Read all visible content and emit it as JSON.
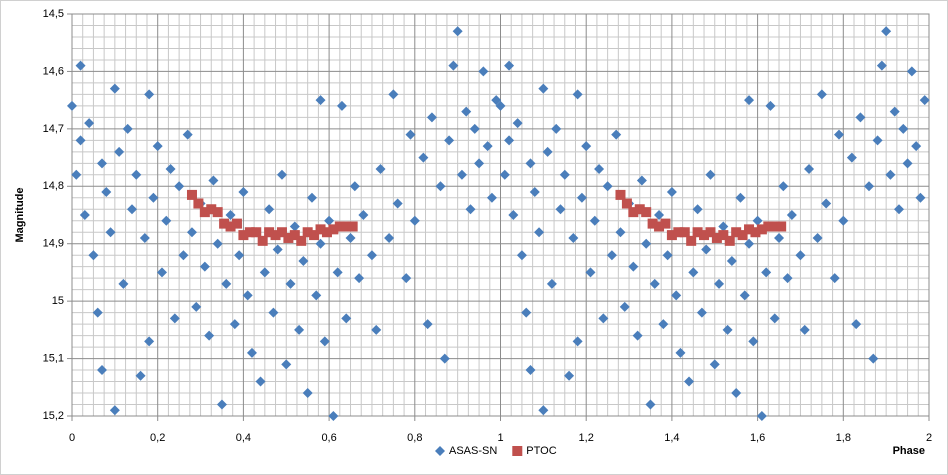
{
  "chart_data": {
    "type": "scatter",
    "xlabel": "Phase",
    "ylabel": "Magnitude",
    "xlim": [
      0,
      2
    ],
    "xticks": [
      0,
      {
        "value": 0.2,
        "label": "0,2"
      },
      {
        "value": 0.4,
        "label": "0,4"
      },
      {
        "value": 0.6,
        "label": "0,6"
      },
      {
        "value": 0.8,
        "label": "0,8"
      },
      1,
      {
        "value": 1.2,
        "label": "1,2"
      },
      {
        "value": 1.4,
        "label": "1,4"
      },
      {
        "value": 1.6,
        "label": "1,6"
      },
      {
        "value": 1.8,
        "label": "1,8"
      },
      2
    ],
    "ylim": [
      14.5,
      15.2
    ],
    "y_reversed": true,
    "yticks": [
      {
        "value": 14.5,
        "label": "14,5"
      },
      {
        "value": 14.6,
        "label": "14,6"
      },
      {
        "value": 14.7,
        "label": "14,7"
      },
      {
        "value": 14.8,
        "label": "14,8"
      },
      {
        "value": 14.9,
        "label": "14,9"
      },
      15,
      {
        "value": 15.1,
        "label": "15,1"
      },
      {
        "value": 15.2,
        "label": "15,2"
      }
    ],
    "grid": true,
    "legend": "bottom",
    "series": [
      {
        "name": "ASAS-SN",
        "color": "#4a7ebb",
        "marker": "diamond",
        "x": [
          0.0,
          0.01,
          0.02,
          0.02,
          0.03,
          0.04,
          0.05,
          0.06,
          0.07,
          0.07,
          0.08,
          0.09,
          0.1,
          0.1,
          0.11,
          0.12,
          0.13,
          0.14,
          0.15,
          0.16,
          0.17,
          0.18,
          0.18,
          0.19,
          0.2,
          0.21,
          0.22,
          0.23,
          0.24,
          0.25,
          0.26,
          0.27,
          0.28,
          0.29,
          0.3,
          0.31,
          0.32,
          0.33,
          0.34,
          0.35,
          0.36,
          0.37,
          0.38,
          0.39,
          0.4,
          0.41,
          0.42,
          0.43,
          0.44,
          0.45,
          0.46,
          0.47,
          0.48,
          0.49,
          0.5,
          0.51,
          0.52,
          0.53,
          0.54,
          0.55,
          0.56,
          0.57,
          0.58,
          0.58,
          0.59,
          0.6,
          0.61,
          0.62,
          0.63,
          0.64,
          0.65,
          0.66,
          0.67,
          0.68,
          0.7,
          0.71,
          0.72,
          0.74,
          0.75,
          0.76,
          0.78,
          0.79,
          0.8,
          0.82,
          0.83,
          0.84,
          0.86,
          0.87,
          0.88,
          0.89,
          0.9,
          0.91,
          0.92,
          0.93,
          0.94,
          0.95,
          0.96,
          0.97,
          0.98,
          0.99,
          1.0,
          1.01,
          1.02,
          1.02,
          1.03,
          1.04,
          1.05,
          1.06,
          1.07,
          1.07,
          1.08,
          1.09,
          1.1,
          1.1,
          1.11,
          1.12,
          1.13,
          1.14,
          1.15,
          1.16,
          1.17,
          1.18,
          1.18,
          1.19,
          1.2,
          1.21,
          1.22,
          1.23,
          1.24,
          1.25,
          1.26,
          1.27,
          1.28,
          1.29,
          1.3,
          1.31,
          1.32,
          1.33,
          1.34,
          1.35,
          1.36,
          1.37,
          1.38,
          1.39,
          1.4,
          1.41,
          1.42,
          1.43,
          1.44,
          1.45,
          1.46,
          1.47,
          1.48,
          1.49,
          1.5,
          1.51,
          1.52,
          1.53,
          1.54,
          1.55,
          1.56,
          1.57,
          1.58,
          1.58,
          1.59,
          1.6,
          1.61,
          1.62,
          1.63,
          1.64,
          1.65,
          1.66,
          1.67,
          1.68,
          1.7,
          1.71,
          1.72,
          1.74,
          1.75,
          1.76,
          1.78,
          1.79,
          1.8,
          1.82,
          1.83,
          1.84,
          1.86,
          1.87,
          1.88,
          1.89,
          1.9,
          1.91,
          1.92,
          1.93,
          1.94,
          1.95,
          1.96,
          1.97,
          1.98,
          1.99
        ],
        "values": [
          14.66,
          14.78,
          14.59,
          14.72,
          14.85,
          14.69,
          14.92,
          15.02,
          15.12,
          14.76,
          14.81,
          14.88,
          14.63,
          15.19,
          14.74,
          14.97,
          14.7,
          14.84,
          14.78,
          15.13,
          14.89,
          14.64,
          15.07,
          14.82,
          14.73,
          14.95,
          14.86,
          14.77,
          15.03,
          14.8,
          14.92,
          14.71,
          14.88,
          15.01,
          14.83,
          14.94,
          15.06,
          14.79,
          14.9,
          15.18,
          14.97,
          14.85,
          15.04,
          14.92,
          14.81,
          14.99,
          15.09,
          14.88,
          15.14,
          14.95,
          14.84,
          15.02,
          14.91,
          14.78,
          15.11,
          14.97,
          14.87,
          15.05,
          14.93,
          15.16,
          14.82,
          14.99,
          14.65,
          14.9,
          15.07,
          14.86,
          15.2,
          14.95,
          14.66,
          15.03,
          14.89,
          14.8,
          14.96,
          14.85,
          14.92,
          15.05,
          14.77,
          14.89,
          14.64,
          14.83,
          14.96,
          14.71,
          14.86,
          14.75,
          15.04,
          14.68,
          14.8,
          15.1,
          14.72,
          14.59,
          14.53,
          14.78,
          14.67,
          14.84,
          14.7,
          14.76,
          14.6,
          14.73,
          14.82,
          14.65,
          14.66,
          14.78,
          14.59,
          14.72,
          14.85,
          14.69,
          14.92,
          15.02,
          15.12,
          14.76,
          14.81,
          14.88,
          14.63,
          15.19,
          14.74,
          14.97,
          14.7,
          14.84,
          14.78,
          15.13,
          14.89,
          14.64,
          15.07,
          14.82,
          14.73,
          14.95,
          14.86,
          14.77,
          15.03,
          14.8,
          14.92,
          14.71,
          14.88,
          15.01,
          14.83,
          14.94,
          15.06,
          14.79,
          14.9,
          15.18,
          14.97,
          14.85,
          15.04,
          14.92,
          14.81,
          14.99,
          15.09,
          14.88,
          15.14,
          14.95,
          14.84,
          15.02,
          14.91,
          14.78,
          15.11,
          14.97,
          14.87,
          15.05,
          14.93,
          15.16,
          14.82,
          14.99,
          14.65,
          14.9,
          15.07,
          14.86,
          15.2,
          14.95,
          14.66,
          15.03,
          14.89,
          14.8,
          14.96,
          14.85,
          14.92,
          15.05,
          14.77,
          14.89,
          14.64,
          14.83,
          14.96,
          14.71,
          14.86,
          14.75,
          15.04,
          14.68,
          14.8,
          15.1,
          14.72,
          14.59,
          14.53,
          14.78,
          14.67,
          14.84,
          14.7,
          14.76,
          14.6,
          14.73,
          14.82,
          14.65
        ]
      },
      {
        "name": "PTOC",
        "color": "#c0504d",
        "marker": "square",
        "x": [
          0.28,
          0.295,
          0.31,
          0.325,
          0.34,
          0.355,
          0.37,
          0.385,
          0.4,
          0.415,
          0.43,
          0.445,
          0.46,
          0.475,
          0.49,
          0.505,
          0.52,
          0.535,
          0.55,
          0.565,
          0.58,
          0.595,
          0.61,
          0.625,
          0.64,
          0.655,
          1.28,
          1.295,
          1.31,
          1.325,
          1.34,
          1.355,
          1.37,
          1.385,
          1.4,
          1.415,
          1.43,
          1.445,
          1.46,
          1.475,
          1.49,
          1.505,
          1.52,
          1.535,
          1.55,
          1.565,
          1.58,
          1.595,
          1.61,
          1.625,
          1.64,
          1.655
        ],
        "values": [
          14.815,
          14.83,
          14.845,
          14.84,
          14.845,
          14.865,
          14.87,
          14.865,
          14.885,
          14.88,
          14.88,
          14.895,
          14.88,
          14.885,
          14.88,
          14.89,
          14.885,
          14.895,
          14.88,
          14.885,
          14.875,
          14.88,
          14.875,
          14.87,
          14.87,
          14.87,
          14.815,
          14.83,
          14.845,
          14.84,
          14.845,
          14.865,
          14.87,
          14.865,
          14.885,
          14.88,
          14.88,
          14.895,
          14.88,
          14.885,
          14.88,
          14.89,
          14.885,
          14.895,
          14.88,
          14.885,
          14.875,
          14.88,
          14.875,
          14.87,
          14.87,
          14.87
        ]
      }
    ]
  }
}
